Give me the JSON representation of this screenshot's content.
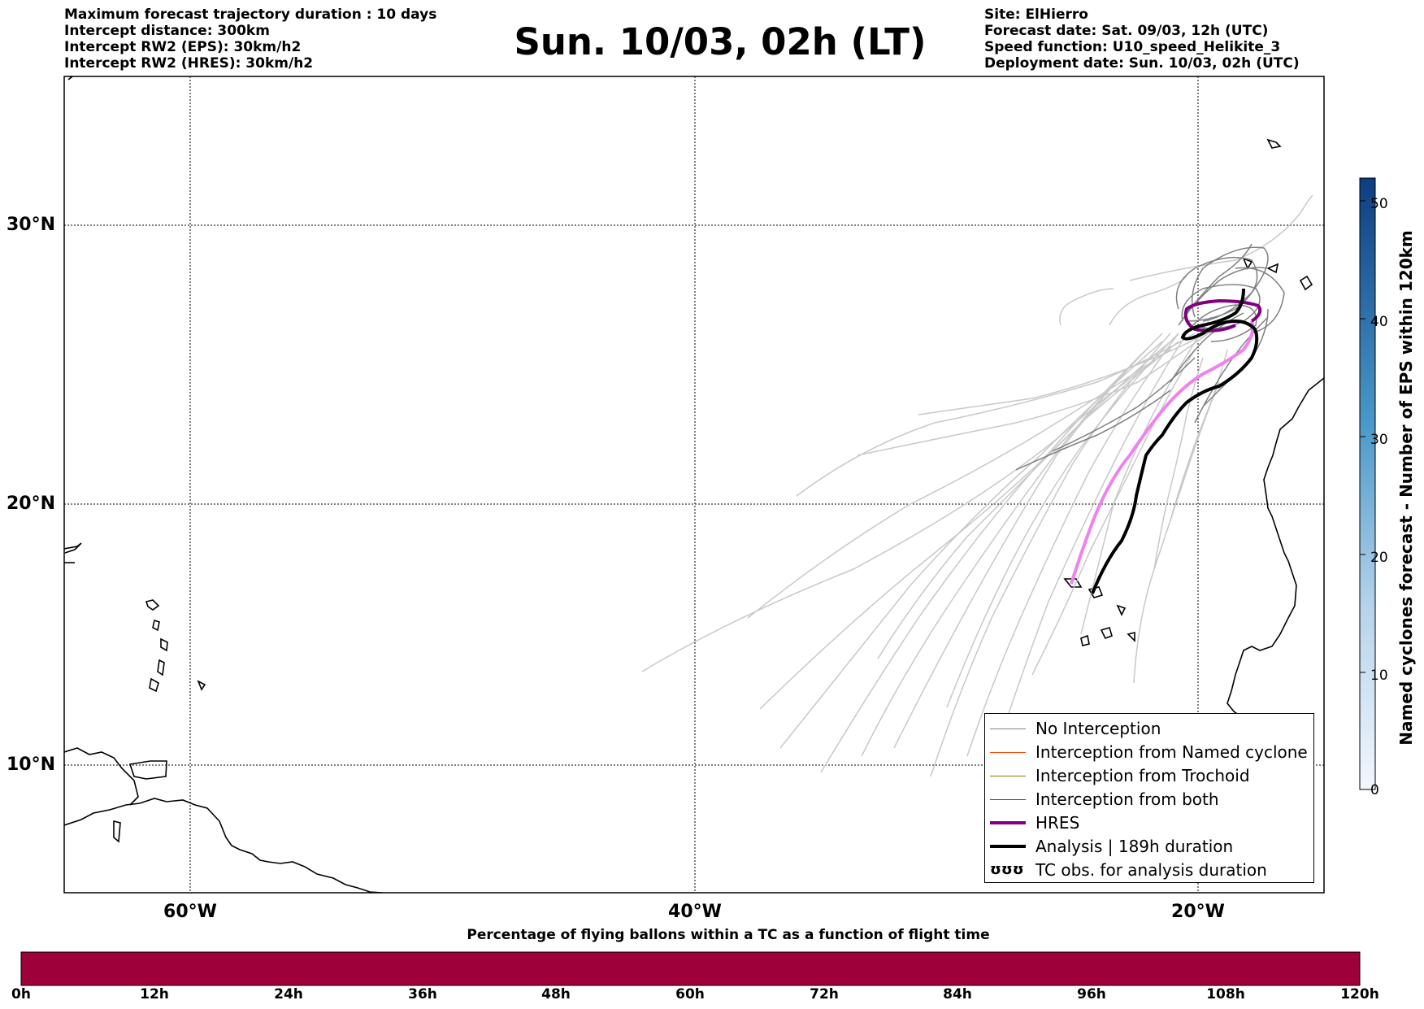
{
  "header_left": {
    "line1": "Maximum forecast trajectory duration : 10 days",
    "line2": "Intercept distance: 300km",
    "line3": "Intercept RW2 (EPS):  30km/h2",
    "line4": "Intercept RW2 (HRES): 30km/h2"
  },
  "title": "Sun. 10/03, 02h (LT)",
  "header_right": {
    "line1": "Site: ElHierro",
    "line2": "Forecast date: Sat. 09/03, 12h (UTC)",
    "line3": "Speed function: U10_speed_Helikite_3",
    "line4": "Deployment date: Sun. 10/03, 02h (UTC)"
  },
  "map": {
    "lat_labels": [
      "30°N",
      "20°N",
      "10°N"
    ],
    "lon_labels": [
      "60°W",
      "40°W",
      "20°W"
    ],
    "colors": {
      "no_interception": "#808080",
      "eps_light": "#c8c8c8",
      "named_cyclone": "#ff4500",
      "trochoid": "#808000",
      "both": "#008000",
      "hres": "#800080",
      "hres_forecast": "#ee82ee",
      "analysis": "#000000"
    }
  },
  "legend": {
    "items": [
      {
        "label": "No Interception",
        "color": "#808080"
      },
      {
        "label": "Interception from Named cyclone",
        "color": "#ff4500"
      },
      {
        "label": "Interception from Trochoid",
        "color": "#808000"
      },
      {
        "label": "Interception from both",
        "color": "#008000"
      },
      {
        "label": "HRES",
        "color": "#800080"
      },
      {
        "label": "Analysis | 189h duration",
        "color": "#000000"
      },
      {
        "label": "TC obs. for analysis duration",
        "symbol": "ʊʊʊ"
      }
    ]
  },
  "colorbar": {
    "title": "Named cyclones forecast - Number of EPS within 120km",
    "ticks": [
      "0",
      "10",
      "20",
      "30",
      "40",
      "50"
    ],
    "min": 0,
    "max": 52
  },
  "timebar": {
    "title": "Percentage of flying ballons within a TC as a function of flight time",
    "ticks": [
      "0h",
      "12h",
      "24h",
      "36h",
      "48h",
      "60h",
      "72h",
      "84h",
      "96h",
      "108h",
      "120h"
    ],
    "fill_color": "#9e003a"
  }
}
